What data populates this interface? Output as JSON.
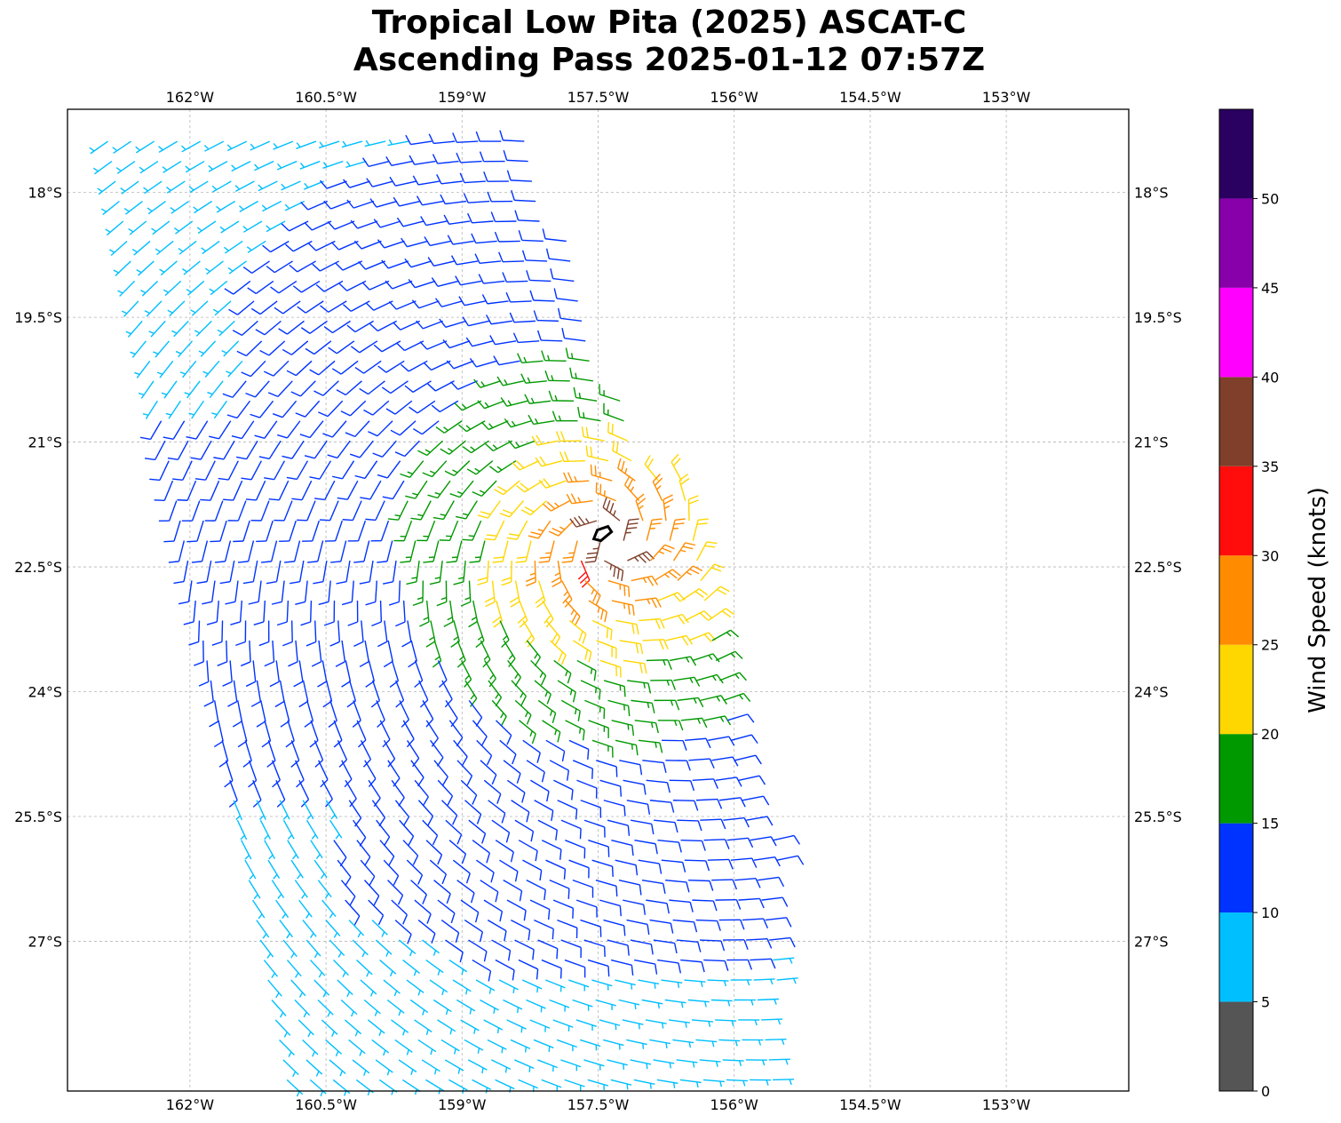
{
  "title": {
    "line1": "Tropical Low Pita (2025) ASCAT-C",
    "line2": "Ascending Pass 2025-01-12 07:57Z"
  },
  "map": {
    "lon_range": [
      -163.35,
      -151.65
    ],
    "lat_range": [
      -28.8,
      -17.0
    ],
    "lon_ticks": [
      {
        "value": -162,
        "label": "162°W"
      },
      {
        "value": -160.5,
        "label": "160.5°W"
      },
      {
        "value": -159,
        "label": "159°W"
      },
      {
        "value": -157.5,
        "label": "157.5°W"
      },
      {
        "value": -156,
        "label": "156°W"
      },
      {
        "value": -154.5,
        "label": "154.5°W"
      },
      {
        "value": -153,
        "label": "153°W"
      }
    ],
    "lat_ticks": [
      {
        "value": -18,
        "label": "18°S"
      },
      {
        "value": -19.5,
        "label": "19.5°S"
      },
      {
        "value": -21,
        "label": "21°S"
      },
      {
        "value": -22.5,
        "label": "22.5°S"
      },
      {
        "value": -24,
        "label": "24°S"
      },
      {
        "value": -25.5,
        "label": "25.5°S"
      },
      {
        "value": -27,
        "label": "27°S"
      }
    ],
    "gridlines": true,
    "feature": "wind barbs (ASCAT-C swath)",
    "low_center": {
      "lon": -157.45,
      "lat": -22.1
    }
  },
  "colorbar": {
    "label": "Wind Speed (knots)",
    "ticks": [
      "0",
      "5",
      "10",
      "15",
      "20",
      "25",
      "30",
      "35",
      "40",
      "45",
      "50"
    ],
    "bins": [
      {
        "from": 0,
        "to": 5,
        "color": "#555555"
      },
      {
        "from": 5,
        "to": 10,
        "color": "#00bfff"
      },
      {
        "from": 10,
        "to": 15,
        "color": "#0033ff"
      },
      {
        "from": 15,
        "to": 20,
        "color": "#009900"
      },
      {
        "from": 20,
        "to": 25,
        "color": "#ffd700"
      },
      {
        "from": 25,
        "to": 30,
        "color": "#ff8c00"
      },
      {
        "from": 30,
        "to": 35,
        "color": "#ff0d0d"
      },
      {
        "from": 35,
        "to": 40,
        "color": "#7f3f2a"
      },
      {
        "from": 40,
        "to": 45,
        "color": "#ff00ff"
      },
      {
        "from": 45,
        "to": 50,
        "color": "#8800aa"
      },
      {
        "from": 50,
        "to": 55,
        "color": "#2a0060"
      }
    ]
  }
}
